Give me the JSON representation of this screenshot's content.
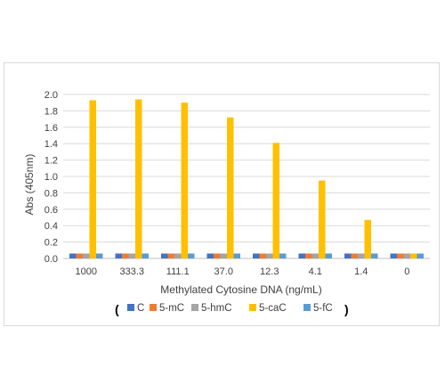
{
  "chart_data": {
    "type": "bar",
    "title": "",
    "xlabel": "Methylated Cytosine DNA (ng/mL)",
    "ylabel": "Abs (405nm)",
    "ylim": [
      0,
      2.0
    ],
    "yticks": [
      "0.0",
      "0.2",
      "0.4",
      "0.6",
      "0.8",
      "1.0",
      "1.2",
      "1.4",
      "1.6",
      "1.8",
      "2.0"
    ],
    "grid": true,
    "legend_position": "bottom",
    "legend_open": "(",
    "legend_close": ")",
    "categories": [
      "1000",
      "333.3",
      "111.1",
      "37.0",
      "12.3",
      "4.1",
      "1.4",
      "0"
    ],
    "series": [
      {
        "name": "C",
        "color": "#4472c4",
        "values": [
          0.06,
          0.06,
          0.06,
          0.06,
          0.06,
          0.06,
          0.06,
          0.06
        ]
      },
      {
        "name": "5-mC",
        "color": "#ed7d31",
        "values": [
          0.06,
          0.06,
          0.06,
          0.06,
          0.06,
          0.06,
          0.06,
          0.06
        ]
      },
      {
        "name": "5-hmC",
        "color": "#a5a5a5",
        "values": [
          0.06,
          0.06,
          0.06,
          0.06,
          0.06,
          0.06,
          0.06,
          0.06
        ]
      },
      {
        "name": "5-caC",
        "color": "#ffc000",
        "values": [
          1.93,
          1.94,
          1.9,
          1.72,
          1.41,
          0.95,
          0.47,
          0.06
        ]
      },
      {
        "name": "5-fC",
        "color": "#5b9bd5",
        "values": [
          0.06,
          0.06,
          0.06,
          0.06,
          0.06,
          0.06,
          0.06,
          0.06
        ]
      }
    ]
  }
}
